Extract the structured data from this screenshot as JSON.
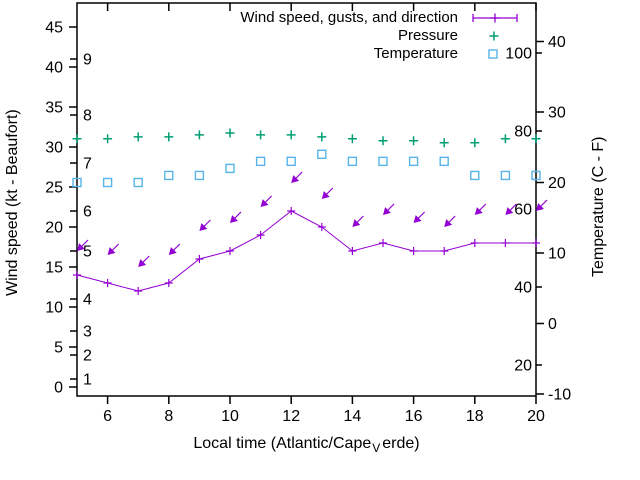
{
  "chart_data": {
    "type": "line",
    "x": {
      "label": "Local time (Atlantic/Cape_Verde)",
      "hours": [
        5,
        6,
        7,
        8,
        9,
        10,
        11,
        12,
        13,
        14,
        15,
        16,
        17,
        18,
        19,
        20
      ],
      "ticks": [
        6,
        8,
        10,
        12,
        14,
        16,
        18,
        20
      ],
      "range": [
        5,
        20
      ]
    },
    "y_left": {
      "label": "Wind speed (kt - Beaufort)",
      "ticks": [
        0,
        5,
        10,
        15,
        20,
        25,
        30,
        35,
        40,
        45
      ],
      "range": [
        0,
        45
      ],
      "beaufort_marks": [
        {
          "bft": "1",
          "kt": 1
        },
        {
          "bft": "2",
          "kt": 4
        },
        {
          "bft": "3",
          "kt": 7
        },
        {
          "bft": "4",
          "kt": 11
        },
        {
          "bft": "5",
          "kt": 17
        },
        {
          "bft": "6",
          "kt": 22
        },
        {
          "bft": "7",
          "kt": 28
        },
        {
          "bft": "8",
          "kt": 34
        },
        {
          "bft": "9",
          "kt": 41
        }
      ]
    },
    "y_right": {
      "label": "Temperature (C - F)",
      "ticks": [
        -10,
        0,
        10,
        20,
        30,
        40
      ],
      "range": [
        -10,
        40
      ],
      "inner_scale_ticks": [
        20,
        40,
        60,
        80,
        100
      ]
    },
    "series": [
      {
        "name": "Wind speed, gusts, and direction",
        "color": "#9400d3",
        "style": "line with plus point markers; arrows mark gust speed and wind direction",
        "wind_speed_kt": [
          14,
          13,
          12,
          13,
          16,
          17,
          19,
          22,
          20,
          17,
          18,
          17,
          17,
          18,
          18,
          18
        ],
        "gust_kt": [
          17,
          16.5,
          15,
          16.5,
          19.5,
          20.5,
          22.5,
          25.5,
          23.5,
          20,
          21.5,
          20.5,
          20,
          21.5,
          21.5,
          22
        ],
        "direction_from": [
          "NE",
          "NE",
          "NE",
          "NE",
          "NE",
          "NE",
          "NE",
          "NE",
          "NE",
          "NE",
          "NE",
          "NE",
          "NE",
          "NE",
          "NE",
          "NE"
        ]
      },
      {
        "name": "Pressure",
        "color": "#009e73",
        "style": "plus markers, read on right inner 20-100 scale",
        "values": [
          78,
          78,
          78.5,
          78.5,
          79,
          79.5,
          79,
          79,
          78.5,
          78,
          77.5,
          77.5,
          77,
          77,
          78,
          78
        ]
      },
      {
        "name": "Temperature",
        "color": "#56b4e9",
        "style": "open square markers, degrees C on right axis",
        "values_c": [
          20,
          20,
          20,
          21,
          21,
          22,
          23,
          23,
          24,
          23,
          23,
          23,
          23,
          21,
          21,
          21
        ]
      }
    ]
  },
  "labels": {
    "y_left_title": "Wind speed (kt - Beaufort)",
    "y_right_title": "Temperature (C - F)",
    "x_title_prefix": "Local time (Atlantic/Cape",
    "x_title_sub": "V",
    "x_title_suffix": "erde)"
  },
  "legend": {
    "items": [
      {
        "label": "Wind speed, gusts, and direction",
        "marker": "errorbar"
      },
      {
        "label": "Pressure",
        "marker": "plus"
      },
      {
        "label": "Temperature",
        "marker": "square"
      }
    ]
  }
}
